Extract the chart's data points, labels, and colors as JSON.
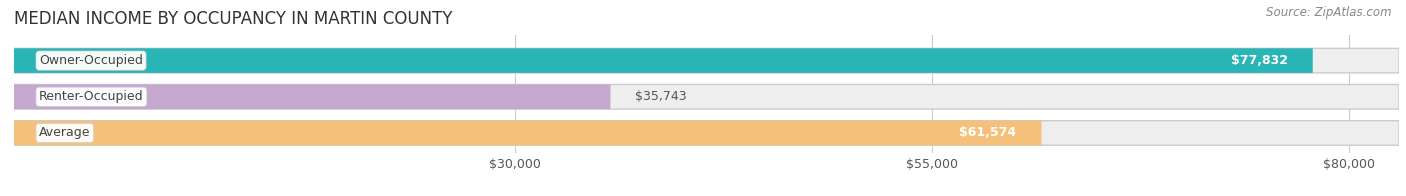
{
  "title": "MEDIAN INCOME BY OCCUPANCY IN MARTIN COUNTY",
  "source": "Source: ZipAtlas.com",
  "categories": [
    "Owner-Occupied",
    "Renter-Occupied",
    "Average"
  ],
  "values": [
    77832,
    35743,
    61574
  ],
  "bar_colors": [
    "#29b5b5",
    "#c4a8d0",
    "#f5c07a"
  ],
  "value_labels": [
    "$77,832",
    "$35,743",
    "$61,574"
  ],
  "value_inside": [
    true,
    false,
    true
  ],
  "xmin": 0,
  "xmax": 83000,
  "xticks": [
    30000,
    55000,
    80000
  ],
  "xtick_labels": [
    "$30,000",
    "$55,000",
    "$80,000"
  ],
  "background_color": "#ffffff",
  "bar_background_color": "#eeeeee",
  "bar_border_color": "#cccccc",
  "title_fontsize": 12,
  "label_fontsize": 9,
  "value_fontsize": 9,
  "source_fontsize": 8.5
}
